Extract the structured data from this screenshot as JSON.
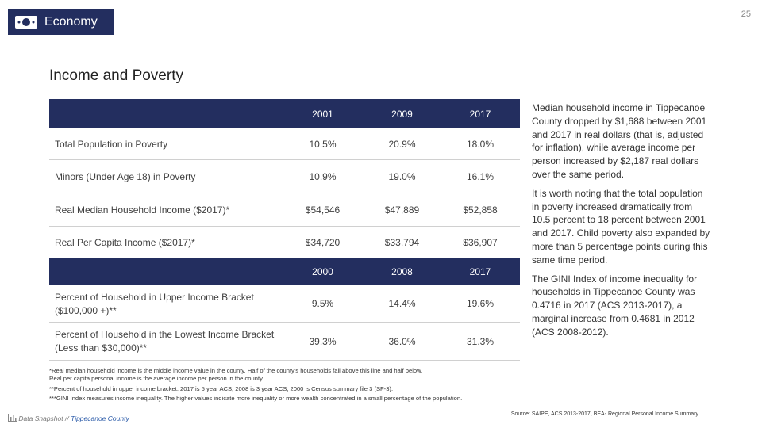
{
  "page_number": "25",
  "header": {
    "title": "Economy"
  },
  "subtitle": "Income and Poverty",
  "table": {
    "header1": [
      "2001",
      "2009",
      "2017"
    ],
    "rows": [
      [
        "Total Population in Poverty",
        "10.5%",
        "20.9%",
        "18.0%"
      ],
      [
        "Minors (Under Age 18) in Poverty",
        "10.9%",
        "19.0%",
        "16.1%"
      ],
      [
        "Real Median Household Income ($2017)*",
        "$54,546",
        "$47,889",
        "$52,858"
      ],
      [
        "Real Per Capita Income ($2017)*",
        "$34,720",
        "$33,794",
        "$36,907"
      ]
    ],
    "header2": [
      "2000",
      "2008",
      "2017"
    ],
    "rows2": [
      [
        "Percent of Household in Upper Income Bracket ($100,000 +)**",
        "9.5%",
        "14.4%",
        "19.6%"
      ],
      [
        "Percent of Household in the Lowest Income Bracket (Less than $30,000)**",
        "39.3%",
        "36.0%",
        "31.3%"
      ]
    ]
  },
  "paragraphs": [
    "Median household income in Tippecanoe County dropped by $1,688 between 2001 and 2017 in real dollars (that is, adjusted for inflation), while average income per person increased by $2,187 real dollars over the same period.",
    "It is worth noting that the total population in poverty increased dramatically from 10.5 percent to 18 percent between 2001 and 2017. Child poverty also expanded by more than 5 percentage points during this same time period.",
    "The GINI Index of income inequality for households in Tippecanoe County was 0.4716 in 2017 (ACS 2013-2017), a marginal increase from 0.4681 in 2012 (ACS 2008-2012)."
  ],
  "footnotes": [
    "*Real median household income is the middle income value in the county. Half of the county's households fall above this line and half below.",
    "Real per capita personal income is the average income per person in the county.",
    "**Percent of household in upper income bracket: 2017 is 5 year ACS, 2008 is 3 year ACS, 2000 is Census summary file 3 (SF-3).",
    "***GINI Index measures income inequality. The higher values indicate more inequality or more wealth concentrated in a small percentage of the population."
  ],
  "source": "Source: SAIPE, ACS 2013-2017, BEA- Regional Personal Income Summary",
  "footer": {
    "left": "Data Snapshot //",
    "right": "Tippecanoe County"
  }
}
